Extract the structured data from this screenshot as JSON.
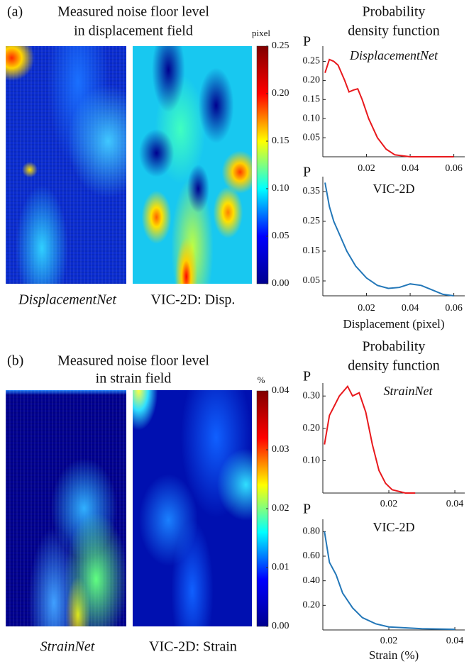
{
  "panels": [
    {
      "label": "(a)",
      "title": [
        "Measured noise floor level",
        "in displacement field"
      ],
      "captions": [
        "DisplacementNet",
        "VIC-2D: Disp."
      ],
      "pdf_title": [
        "Probability",
        "density function"
      ]
    },
    {
      "label": "(b)",
      "title": [
        "Measured noise floor level",
        "in strain field"
      ],
      "captions": [
        "StrainNet",
        "VIC-2D: Strain"
      ],
      "pdf_title": [
        "Probability",
        "density function"
      ]
    }
  ],
  "chart_data": [
    {
      "type": "colorbar",
      "title": "pixel",
      "ylim": [
        0,
        0.25
      ],
      "yticks": [
        0.25,
        {
          "value": 0.2,
          "label": "0.20"
        },
        0.15,
        {
          "value": 0.1,
          "label": "0.10"
        },
        0.05,
        {
          "value": 0,
          "label": "0.00"
        }
      ],
      "colors": [
        "#00008f",
        "#0000ff",
        "#00ffff",
        "#ffff00",
        "#ff0000",
        "#800000"
      ]
    },
    {
      "type": "line",
      "ylabel": "P",
      "annotation": "DisplacementNet",
      "color": "#e8191d",
      "x": [
        0.001,
        0.003,
        0.005,
        0.007,
        0.01,
        0.012,
        0.014,
        0.016,
        0.018,
        0.021,
        0.025,
        0.029,
        0.033,
        0.04,
        0.06
      ],
      "values": [
        0.22,
        0.255,
        0.25,
        0.24,
        0.2,
        0.17,
        0.175,
        0.178,
        0.15,
        0.1,
        0.05,
        0.02,
        0.005,
        0,
        0
      ],
      "xlim": [
        0,
        0.065
      ],
      "ylim": [
        0,
        0.29
      ],
      "xticks": [
        0.02,
        0.04,
        0.06
      ],
      "yticks": [
        0.25,
        {
          "value": 0.2,
          "label": "0.20"
        },
        0.15,
        {
          "value": 0.1,
          "label": "0.10"
        },
        0.05
      ]
    },
    {
      "type": "line",
      "ylabel": "P",
      "annotation": "VIC-2D",
      "xlabel": "Displacement (pixel)",
      "color": "#2377b8",
      "x": [
        0.001,
        0.003,
        0.005,
        0.008,
        0.011,
        0.015,
        0.02,
        0.025,
        0.03,
        0.035,
        0.04,
        0.045,
        0.05,
        0.055,
        0.06
      ],
      "values": [
        0.38,
        0.3,
        0.25,
        0.2,
        0.15,
        0.1,
        0.06,
        0.035,
        0.025,
        0.028,
        0.04,
        0.035,
        0.02,
        0.005,
        0
      ],
      "xlim": [
        0,
        0.065
      ],
      "ylim": [
        0,
        0.4
      ],
      "xticks": [
        0.02,
        0.04,
        0.06
      ],
      "yticks": [
        0.35,
        0.25,
        0.15,
        0.05
      ]
    },
    {
      "type": "colorbar",
      "title": "%",
      "ylim": [
        0,
        0.04
      ],
      "yticks": [
        0.04,
        0.03,
        0.02,
        0.01,
        {
          "value": 0,
          "label": "0.00"
        }
      ],
      "colors": [
        "#00008f",
        "#0000ff",
        "#00ffff",
        "#ffff00",
        "#ff0000",
        "#800000"
      ]
    },
    {
      "type": "line",
      "ylabel": "P",
      "annotation": "StrainNet",
      "color": "#e8191d",
      "x": [
        0.0005,
        0.002,
        0.003,
        0.005,
        0.0075,
        0.009,
        0.011,
        0.013,
        0.015,
        0.017,
        0.019,
        0.021,
        0.025,
        0.028
      ],
      "values": [
        0.15,
        0.24,
        0.26,
        0.3,
        0.33,
        0.3,
        0.31,
        0.25,
        0.15,
        0.07,
        0.03,
        0.01,
        0,
        0
      ],
      "xlim": [
        0,
        0.043
      ],
      "ylim": [
        0,
        0.34
      ],
      "xticks": [
        0.02,
        0.04
      ],
      "yticks": [
        {
          "value": 0.3,
          "label": "0.30"
        },
        {
          "value": 0.2,
          "label": "0.20"
        },
        {
          "value": 0.1,
          "label": "0.10"
        }
      ]
    },
    {
      "type": "line",
      "ylabel": "P",
      "annotation": "VIC-2D",
      "xlabel": "Strain (%)",
      "color": "#2377b8",
      "x": [
        0.0005,
        0.002,
        0.004,
        0.006,
        0.009,
        0.012,
        0.016,
        0.02,
        0.03,
        0.04
      ],
      "values": [
        0.8,
        0.55,
        0.45,
        0.3,
        0.18,
        0.1,
        0.05,
        0.025,
        0.01,
        0.005
      ],
      "xlim": [
        0,
        0.043
      ],
      "ylim": [
        0,
        0.9
      ],
      "xticks": [
        0.02,
        0.04
      ],
      "yticks": [
        {
          "value": 0.8,
          "label": "0.80"
        },
        {
          "value": 0.6,
          "label": "0.60"
        },
        {
          "value": 0.4,
          "label": "0.40"
        },
        {
          "value": 0.2,
          "label": "0.20"
        }
      ]
    }
  ]
}
